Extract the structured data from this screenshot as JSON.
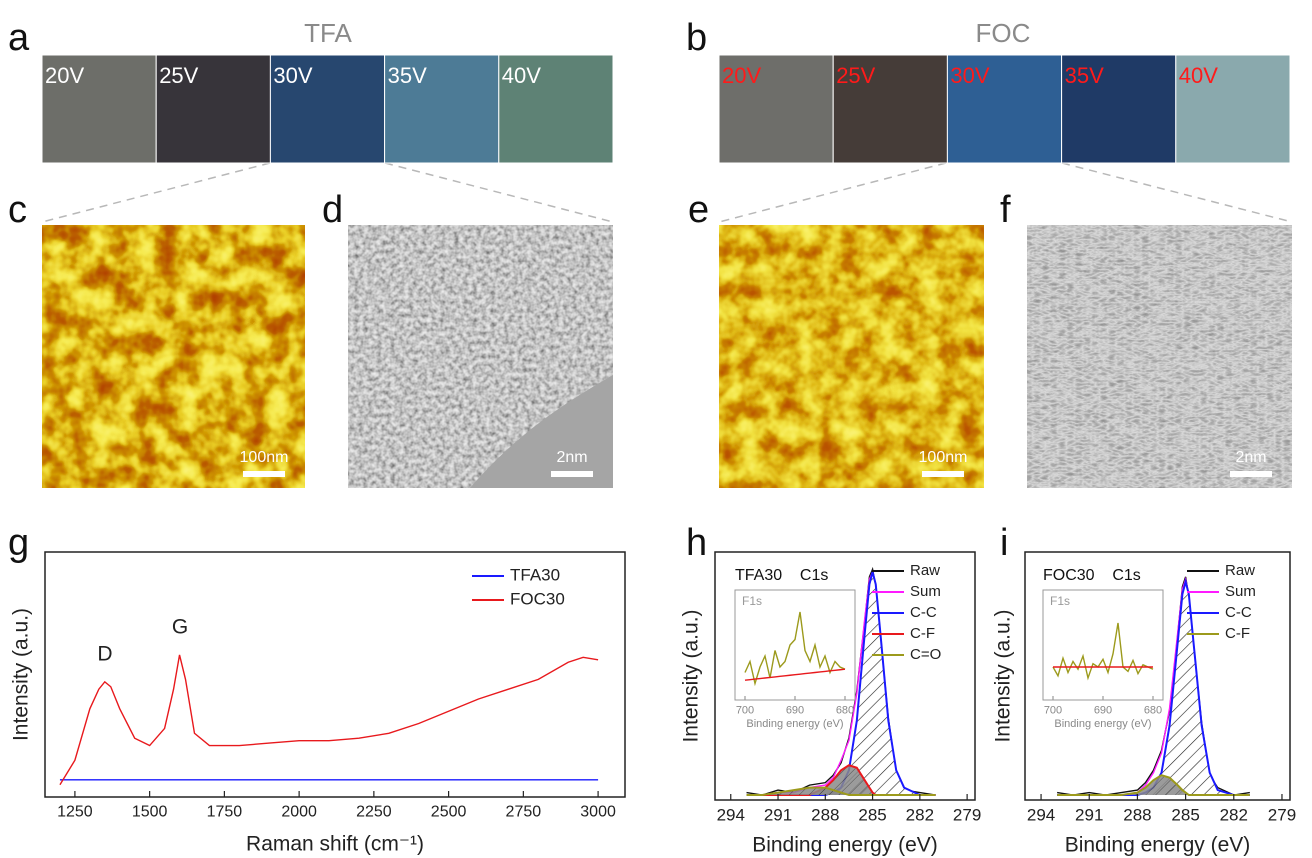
{
  "panels": {
    "a": {
      "label": "a",
      "title": "TFA",
      "swatches": [
        "20V",
        "25V",
        "30V",
        "35V",
        "40V"
      ],
      "colors": [
        "#6d6e69",
        "#37343a",
        "#27476f",
        "#4d7b96",
        "#5e8275"
      ],
      "label_color": "#ffffff"
    },
    "b": {
      "label": "b",
      "title": "FOC",
      "swatches": [
        "20V",
        "25V",
        "30V",
        "35V",
        "40V"
      ],
      "colors": [
        "#6e6e6a",
        "#453c38",
        "#2e5f94",
        "#1f3a66",
        "#8aa9ad"
      ],
      "label_color": "#ff1a1a"
    },
    "c": {
      "label": "c",
      "scale_bar": "100nm"
    },
    "d": {
      "label": "d",
      "scale_bar": "2nm"
    },
    "e": {
      "label": "e",
      "scale_bar": "100nm"
    },
    "f": {
      "label": "f",
      "scale_bar": "2nm"
    }
  },
  "chart_data": [
    {
      "type": "line",
      "panel_label": "g",
      "xlabel": "Raman shift (cm⁻¹)",
      "ylabel": "Intensity (a.u.)",
      "annotations": [
        "D",
        "G"
      ],
      "x": [
        1200,
        1250,
        1300,
        1330,
        1350,
        1370,
        1400,
        1450,
        1500,
        1550,
        1580,
        1600,
        1620,
        1650,
        1700,
        1750,
        1800,
        1900,
        2000,
        2100,
        2200,
        2300,
        2400,
        2500,
        2600,
        2700,
        2800,
        2900,
        2950,
        3000
      ],
      "series": [
        {
          "name": "TFA30",
          "color": "#1a1aff",
          "values": [
            0.07,
            0.07,
            0.07,
            0.07,
            0.07,
            0.07,
            0.07,
            0.07,
            0.07,
            0.07,
            0.07,
            0.07,
            0.07,
            0.07,
            0.07,
            0.07,
            0.07,
            0.07,
            0.07,
            0.07,
            0.07,
            0.07,
            0.07,
            0.07,
            0.07,
            0.07,
            0.07,
            0.07,
            0.07,
            0.07
          ]
        },
        {
          "name": "FOC30",
          "color": "#e8191d",
          "values": [
            0.05,
            0.15,
            0.36,
            0.44,
            0.47,
            0.45,
            0.36,
            0.24,
            0.21,
            0.28,
            0.44,
            0.58,
            0.48,
            0.26,
            0.21,
            0.21,
            0.21,
            0.22,
            0.23,
            0.23,
            0.24,
            0.26,
            0.3,
            0.35,
            0.4,
            0.44,
            0.48,
            0.55,
            0.57,
            0.56
          ]
        }
      ],
      "xlim": [
        1150,
        3090
      ],
      "xticks": [
        1250,
        1500,
        1750,
        2000,
        2250,
        2500,
        2750,
        3000
      ],
      "ylim": [
        0,
        1
      ],
      "legend": "upper right"
    },
    {
      "type": "line",
      "panel_label": "h",
      "title": "TFA30    C1s",
      "xlabel": "Binding energy (eV)",
      "ylabel": "Intensity (a.u.)",
      "x": [
        293,
        292,
        291,
        290,
        289,
        288,
        287.5,
        287,
        286.5,
        286,
        285.5,
        285.2,
        285,
        284.8,
        284.5,
        284,
        283.5,
        283,
        282,
        281
      ],
      "series": [
        {
          "name": "Raw",
          "color": "#111111",
          "values": [
            0.03,
            0.02,
            0.04,
            0.03,
            0.06,
            0.07,
            0.1,
            0.15,
            0.25,
            0.44,
            0.72,
            0.9,
            0.93,
            0.86,
            0.66,
            0.33,
            0.11,
            0.04,
            0.03,
            0.02
          ]
        },
        {
          "name": "Sum",
          "color": "#ff1aff",
          "values": [
            0.02,
            0.02,
            0.03,
            0.03,
            0.05,
            0.06,
            0.09,
            0.16,
            0.24,
            0.43,
            0.73,
            0.89,
            0.92,
            0.87,
            0.67,
            0.32,
            0.12,
            0.05,
            0.02,
            0.02
          ]
        },
        {
          "name": "C-C",
          "color": "#1a1aff",
          "fill": "hatch",
          "values": [
            0.02,
            0.02,
            0.02,
            0.02,
            0.02,
            0.02,
            0.03,
            0.05,
            0.12,
            0.32,
            0.67,
            0.87,
            0.92,
            0.87,
            0.67,
            0.32,
            0.12,
            0.05,
            0.02,
            0.02
          ]
        },
        {
          "name": "C-F",
          "color": "#e8191d",
          "fill": "gray",
          "values": [
            0.02,
            0.02,
            0.02,
            0.02,
            0.02,
            0.05,
            0.08,
            0.12,
            0.14,
            0.13,
            0.08,
            0.05,
            0.03,
            0.02,
            0.02,
            0.02,
            0.02,
            0.02,
            0.02,
            0.02
          ]
        },
        {
          "name": "C=O",
          "color": "#9c9a1c",
          "fill": "gray",
          "values": [
            0.02,
            0.02,
            0.03,
            0.04,
            0.05,
            0.05,
            0.04,
            0.03,
            0.02,
            0.02,
            0.02,
            0.02,
            0.02,
            0.02,
            0.02,
            0.02,
            0.02,
            0.02,
            0.02,
            0.02
          ]
        }
      ],
      "xlim": [
        295,
        278.5
      ],
      "xticks": [
        294,
        291,
        288,
        285,
        282,
        279
      ],
      "ylim": [
        0,
        1
      ],
      "legend": "upper right"
    },
    {
      "type": "line",
      "title": "F1s",
      "xlabel": "Binding energy (eV)",
      "x": [
        700,
        699,
        698,
        697,
        696,
        695,
        694,
        693,
        692,
        691,
        690,
        689,
        688,
        687,
        686,
        685,
        684,
        683,
        682,
        681,
        680
      ],
      "series": [
        {
          "color": "#9c9a1c",
          "values": [
            0.25,
            0.35,
            0.15,
            0.3,
            0.4,
            0.2,
            0.45,
            0.3,
            0.35,
            0.5,
            0.55,
            0.8,
            0.45,
            0.35,
            0.5,
            0.3,
            0.4,
            0.25,
            0.35,
            0.3,
            0.28
          ]
        },
        {
          "color": "#e8191d",
          "values": [
            0.18,
            0.185,
            0.19,
            0.195,
            0.2,
            0.205,
            0.21,
            0.215,
            0.22,
            0.225,
            0.23,
            0.235,
            0.24,
            0.245,
            0.25,
            0.255,
            0.26,
            0.265,
            0.27,
            0.275,
            0.28
          ]
        }
      ],
      "xlim": [
        702,
        678
      ],
      "xticks": [
        700,
        690,
        680
      ],
      "ylim": [
        0,
        1
      ]
    },
    {
      "type": "line",
      "panel_label": "i",
      "title": "FOC30    C1s",
      "xlabel": "Binding energy (eV)",
      "ylabel": "Intensity (a.u.)",
      "x": [
        293,
        292,
        291,
        290,
        289,
        288,
        287.5,
        287,
        286.5,
        286,
        285.5,
        285.2,
        285,
        284.8,
        284.5,
        284,
        283.5,
        283,
        282,
        281
      ],
      "series": [
        {
          "name": "Raw",
          "color": "#111111",
          "values": [
            0.03,
            0.02,
            0.03,
            0.02,
            0.03,
            0.04,
            0.07,
            0.12,
            0.2,
            0.36,
            0.66,
            0.86,
            0.9,
            0.82,
            0.62,
            0.31,
            0.1,
            0.05,
            0.02,
            0.03
          ]
        },
        {
          "name": "Sum",
          "color": "#ff1aff",
          "values": [
            0.02,
            0.02,
            0.02,
            0.02,
            0.02,
            0.03,
            0.06,
            0.11,
            0.19,
            0.37,
            0.67,
            0.85,
            0.89,
            0.83,
            0.63,
            0.3,
            0.11,
            0.04,
            0.02,
            0.02
          ]
        },
        {
          "name": "C-C",
          "color": "#1a1aff",
          "fill": "hatch",
          "values": [
            0.02,
            0.02,
            0.02,
            0.02,
            0.02,
            0.02,
            0.03,
            0.05,
            0.11,
            0.3,
            0.63,
            0.83,
            0.88,
            0.83,
            0.63,
            0.3,
            0.11,
            0.04,
            0.02,
            0.02
          ]
        },
        {
          "name": "C-F",
          "color": "#9c9a1c",
          "fill": "gray",
          "values": [
            0.02,
            0.02,
            0.02,
            0.02,
            0.02,
            0.03,
            0.05,
            0.08,
            0.1,
            0.09,
            0.06,
            0.04,
            0.03,
            0.02,
            0.02,
            0.02,
            0.02,
            0.02,
            0.02,
            0.02
          ]
        }
      ],
      "xlim": [
        295,
        278.5
      ],
      "xticks": [
        294,
        291,
        288,
        285,
        282,
        279
      ],
      "ylim": [
        0,
        1
      ],
      "legend": "upper right"
    },
    {
      "type": "line",
      "title": "F1s",
      "xlabel": "Binding energy (eV)",
      "x": [
        700,
        699,
        698,
        697,
        696,
        695,
        694,
        693,
        692,
        691,
        690,
        689,
        688,
        687,
        686,
        685,
        684,
        683,
        682,
        681,
        680
      ],
      "series": [
        {
          "color": "#9c9a1c",
          "values": [
            0.3,
            0.22,
            0.38,
            0.25,
            0.35,
            0.28,
            0.4,
            0.2,
            0.33,
            0.3,
            0.37,
            0.25,
            0.42,
            0.7,
            0.3,
            0.26,
            0.36,
            0.24,
            0.32,
            0.3,
            0.28
          ]
        },
        {
          "color": "#e8191d",
          "values": [
            0.3,
            0.3,
            0.3,
            0.3,
            0.3,
            0.3,
            0.3,
            0.3,
            0.3,
            0.3,
            0.3,
            0.3,
            0.3,
            0.3,
            0.3,
            0.3,
            0.3,
            0.3,
            0.3,
            0.3,
            0.3
          ]
        }
      ],
      "xlim": [
        702,
        678
      ],
      "xticks": [
        700,
        690,
        680
      ],
      "ylim": [
        0,
        1
      ]
    }
  ]
}
